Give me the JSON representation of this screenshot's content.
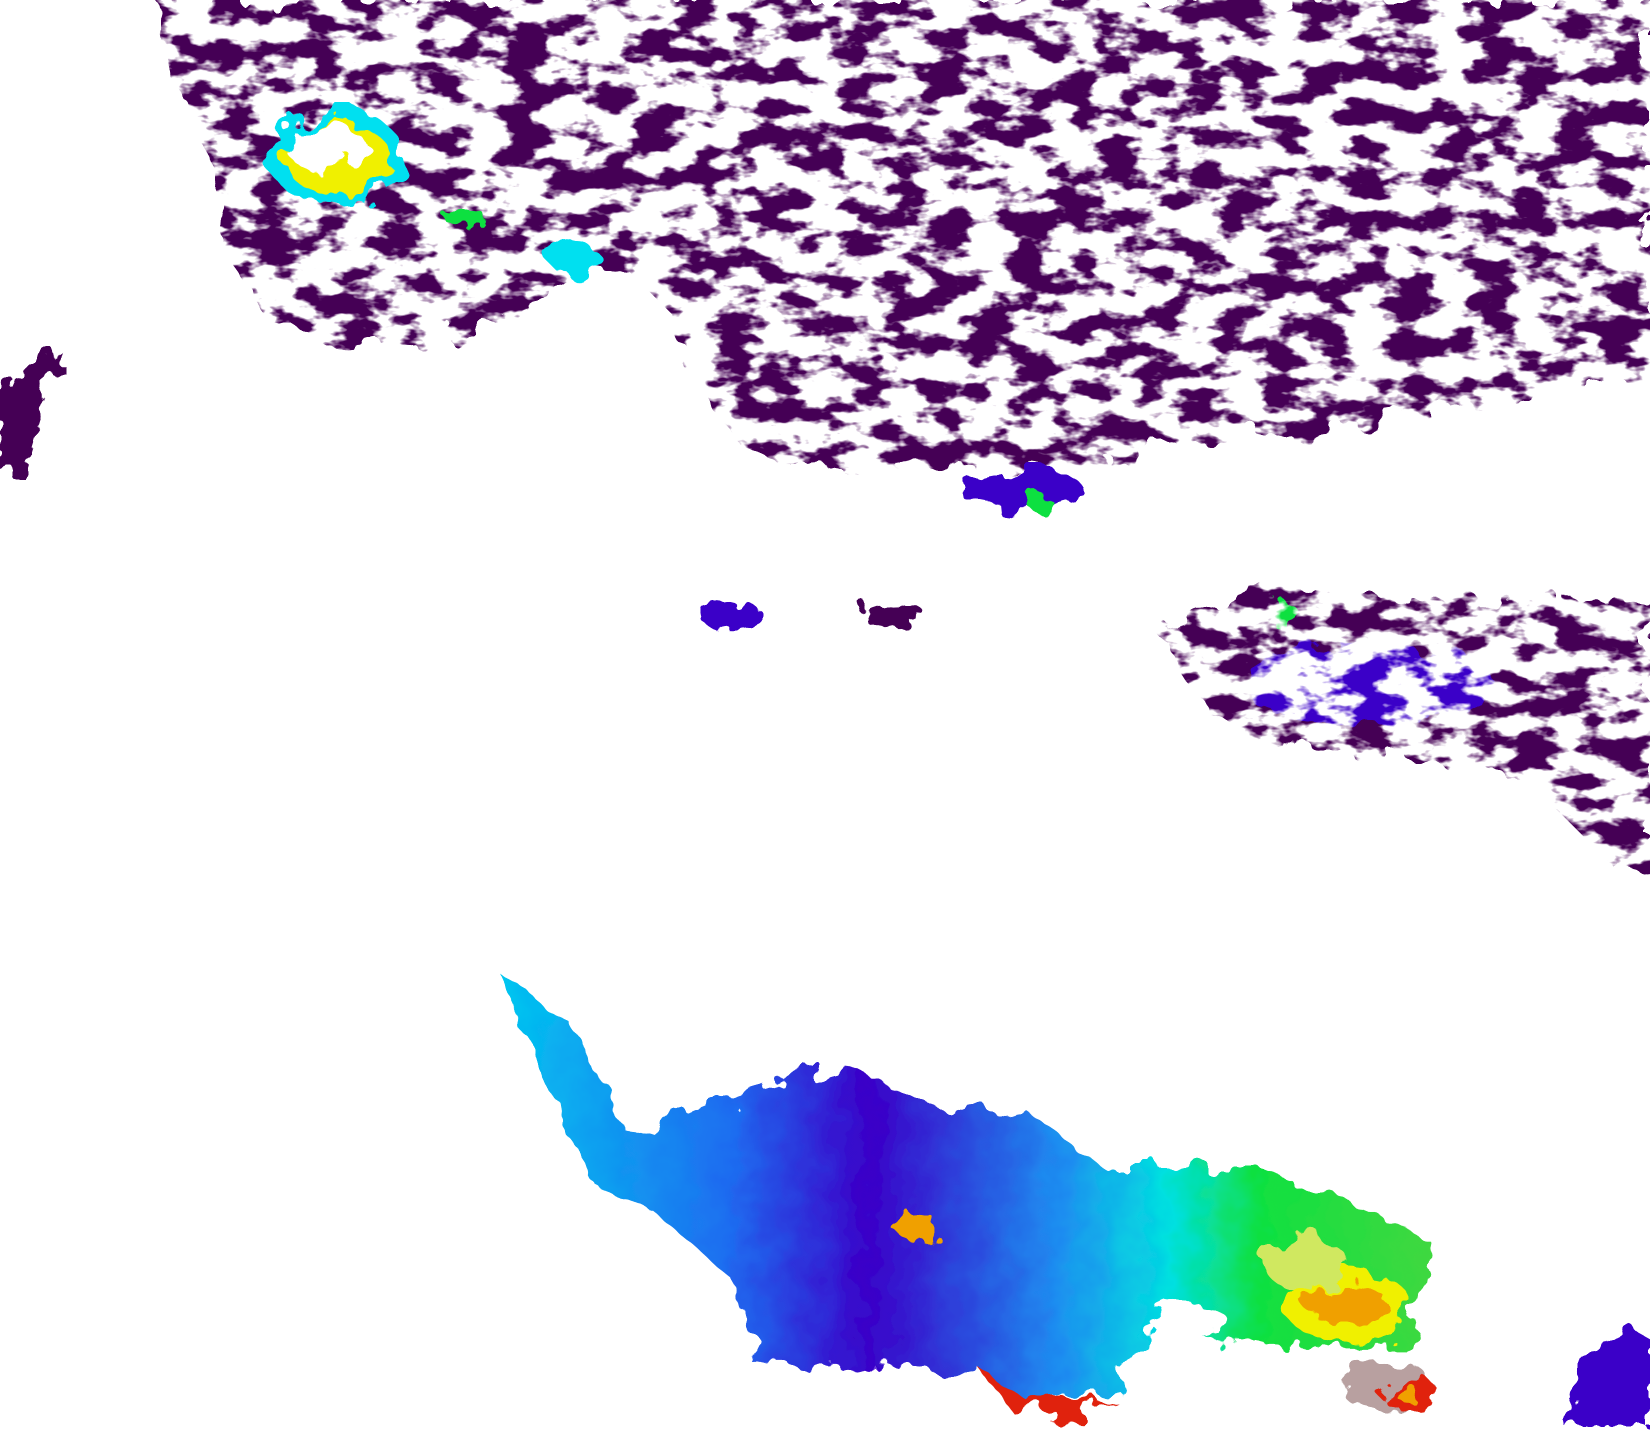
{
  "map": {
    "background_color": "#ffffff",
    "palette": {
      "very_low": "#440055",
      "low": "#3a00c8",
      "low_mid": "#1e6cf0",
      "mid": "#00e0f0",
      "mid_high": "#10e040",
      "high": "#f0f000",
      "very_high": "#f0a000",
      "max": "#e02010",
      "land_gray": "#b8a0a0"
    }
  }
}
